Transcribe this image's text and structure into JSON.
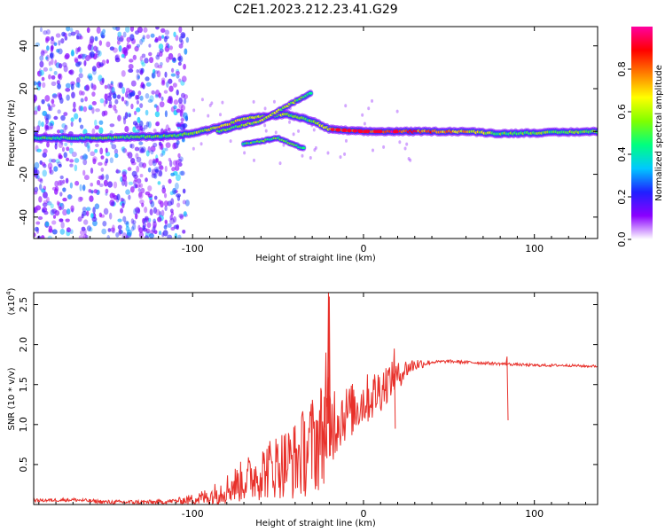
{
  "title": "C2E1.2023.212.23.41.G29",
  "chart_data": [
    {
      "type": "heatmap",
      "title": "C2E1.2023.212.23.41.G29",
      "xlabel": "Height of straight line (km)",
      "ylabel": "Frequency (Hz)",
      "xlim": [
        -193,
        137
      ],
      "ylim": [
        -50,
        49
      ],
      "x_ticks": [
        -100,
        0,
        100
      ],
      "y_ticks": [
        -40,
        -20,
        0,
        20,
        40
      ],
      "colorbar": {
        "label": "Normalized spectral amplitude",
        "range": [
          0,
          1
        ],
        "ticks": [
          0.0,
          0.2,
          0.4,
          0.6,
          0.8
        ],
        "tick_labels": [
          "0.0",
          "0.2",
          "0.4",
          "0.6",
          "0.8"
        ],
        "colormap": [
          "#ffffff",
          "#8a00ff",
          "#2020ff",
          "#00c8ff",
          "#00ff80",
          "#80ff00",
          "#ffff00",
          "#ff8000",
          "#ff0000",
          "#ff00a0"
        ]
      },
      "ridge": [
        {
          "x": -193,
          "freq": -3,
          "amp": 0.45
        },
        {
          "x": -150,
          "freq": -3,
          "amp": 0.5
        },
        {
          "x": -110,
          "freq": -2,
          "amp": 0.5
        },
        {
          "x": -95,
          "freq": 0,
          "amp": 0.6
        },
        {
          "x": -80,
          "freq": 3,
          "amp": 0.65
        },
        {
          "x": -70,
          "freq": 6,
          "amp": 0.6
        },
        {
          "x": -45,
          "freq": 8,
          "amp": 0.55
        },
        {
          "x": -30,
          "freq": 5,
          "amp": 0.5
        },
        {
          "x": -20,
          "freq": 1,
          "amp": 0.7
        },
        {
          "x": 0,
          "freq": 0,
          "amp": 0.85
        },
        {
          "x": 20,
          "freq": 0,
          "amp": 0.9
        },
        {
          "x": 60,
          "freq": 0,
          "amp": 0.7
        },
        {
          "x": 80,
          "freq": -1,
          "amp": 0.5
        },
        {
          "x": 137,
          "freq": 0,
          "amp": 0.55
        }
      ],
      "branch": [
        {
          "x": -85,
          "freq": 0,
          "amp": 0.5
        },
        {
          "x": -60,
          "freq": 5,
          "amp": 0.6
        },
        {
          "x": -40,
          "freq": 14,
          "amp": 0.55
        },
        {
          "x": -30,
          "freq": 18,
          "amp": 0.4
        }
      ],
      "lower_branch": [
        {
          "x": -70,
          "freq": -6,
          "amp": 0.5
        },
        {
          "x": -50,
          "freq": -3,
          "amp": 0.5
        },
        {
          "x": -35,
          "freq": -8,
          "amp": 0.45
        }
      ]
    },
    {
      "type": "line",
      "xlabel": "Height of straight line (km)",
      "ylabel": "SNR (10 * v/v)",
      "y_multiplier_label": "(x10",
      "y_multiplier_exponent": "4",
      "y_multiplier_close": ")",
      "xlim": [
        -193,
        137
      ],
      "ylim": [
        0,
        2.65
      ],
      "x_ticks": [
        -100,
        0,
        100
      ],
      "y_ticks": [
        0.5,
        1.0,
        1.5,
        2.0,
        2.5
      ],
      "y_tick_labels": [
        "0.5",
        "1.0",
        "1.5",
        "2.0",
        "2.5"
      ],
      "color": "#e8302a",
      "series": [
        {
          "x": [
            -193,
            -170,
            -150,
            -120,
            -100,
            -90,
            -80,
            -70,
            -60,
            -50,
            -40,
            -30,
            -25,
            -21,
            -15,
            -10,
            -5,
            0,
            5,
            10,
            15,
            20,
            25,
            30,
            40,
            50,
            60,
            70,
            80,
            90,
            100,
            110,
            120,
            130,
            137
          ],
          "values": [
            0.05,
            0.06,
            0.03,
            0.03,
            0.06,
            0.1,
            0.2,
            0.3,
            0.4,
            0.5,
            0.55,
            0.75,
            0.85,
            1.0,
            1.1,
            1.15,
            1.2,
            1.3,
            1.35,
            1.45,
            1.55,
            1.6,
            1.7,
            1.75,
            1.78,
            1.79,
            1.78,
            1.77,
            1.76,
            1.75,
            1.74,
            1.74,
            1.74,
            1.73,
            1.73
          ]
        }
      ],
      "noise_amplitude": [
        {
          "x": -193,
          "amp": 0.02
        },
        {
          "x": -110,
          "amp": 0.03
        },
        {
          "x": -90,
          "amp": 0.12
        },
        {
          "x": -60,
          "amp": 0.35
        },
        {
          "x": -40,
          "amp": 0.5
        },
        {
          "x": -25,
          "amp": 0.7
        },
        {
          "x": -10,
          "amp": 0.35
        },
        {
          "x": 10,
          "amp": 0.3
        },
        {
          "x": 25,
          "amp": 0.12
        },
        {
          "x": 40,
          "amp": 0.02
        },
        {
          "x": 137,
          "amp": 0.015
        }
      ],
      "spikes": [
        {
          "x": -20.5,
          "y": 2.65
        },
        {
          "x": -20,
          "y": 2.6
        },
        {
          "x": -22,
          "y": 1.9
        },
        {
          "x": 18,
          "y": 1.95
        },
        {
          "x": 84,
          "y": 1.85
        }
      ]
    }
  ]
}
